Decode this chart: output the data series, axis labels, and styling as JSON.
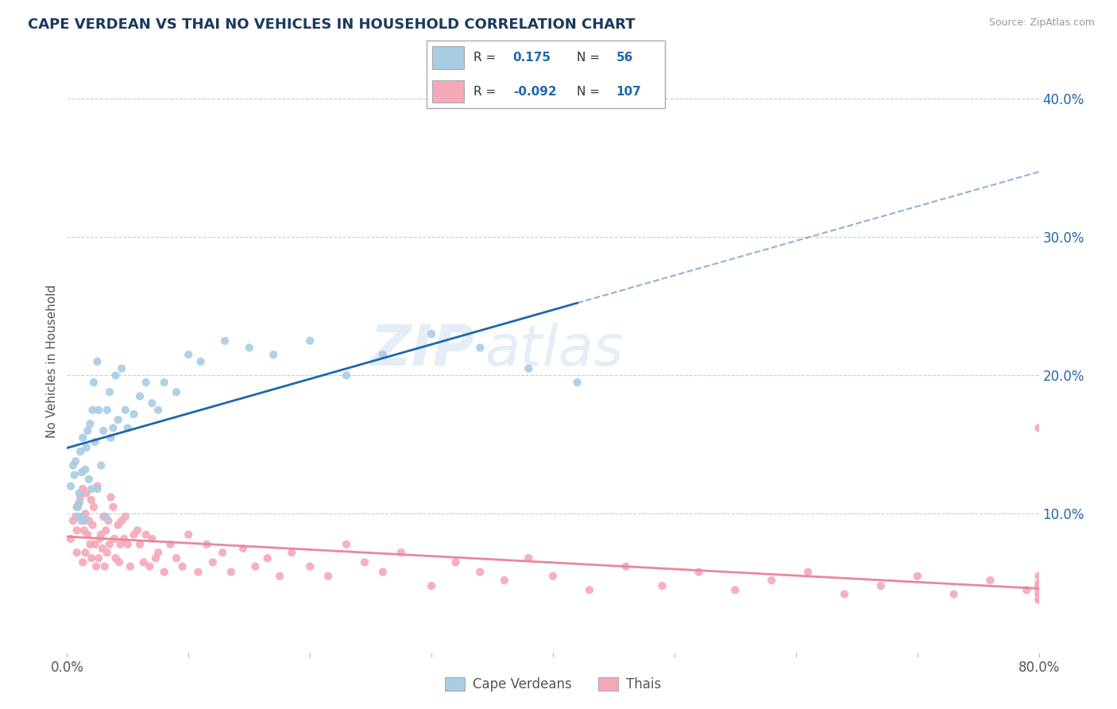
{
  "title": "CAPE VERDEAN VS THAI NO VEHICLES IN HOUSEHOLD CORRELATION CHART",
  "source": "Source: ZipAtlas.com",
  "ylabel": "No Vehicles in Household",
  "xlim": [
    0.0,
    0.8
  ],
  "ylim": [
    0.0,
    0.42
  ],
  "xtick_vals": [
    0.0,
    0.1,
    0.2,
    0.3,
    0.4,
    0.5,
    0.6,
    0.7,
    0.8
  ],
  "xticklabels": [
    "0.0%",
    "",
    "",
    "",
    "",
    "",
    "",
    "",
    "80.0%"
  ],
  "ytick_vals": [
    0.1,
    0.2,
    0.3,
    0.4
  ],
  "yticklabels": [
    "10.0%",
    "20.0%",
    "30.0%",
    "40.0%"
  ],
  "r_cape": 0.175,
  "n_cape": 56,
  "r_thai": -0.092,
  "n_thai": 107,
  "cape_color": "#a8cce4",
  "thai_color": "#f5a8b8",
  "trend_cape_color": "#2166ac",
  "trend_thai_color": "#e8889a",
  "watermark_text": "ZIP",
  "watermark_text2": "atlas",
  "legend_labels": [
    "Cape Verdeans",
    "Thais"
  ],
  "cape_verdean_x": [
    0.003,
    0.005,
    0.006,
    0.007,
    0.008,
    0.009,
    0.01,
    0.01,
    0.011,
    0.012,
    0.012,
    0.013,
    0.014,
    0.015,
    0.016,
    0.017,
    0.018,
    0.019,
    0.02,
    0.021,
    0.022,
    0.023,
    0.025,
    0.025,
    0.026,
    0.028,
    0.03,
    0.032,
    0.033,
    0.035,
    0.036,
    0.038,
    0.04,
    0.042,
    0.045,
    0.048,
    0.05,
    0.055,
    0.06,
    0.065,
    0.07,
    0.075,
    0.08,
    0.09,
    0.1,
    0.11,
    0.13,
    0.15,
    0.17,
    0.2,
    0.23,
    0.26,
    0.3,
    0.34,
    0.38,
    0.42
  ],
  "cape_verdean_y": [
    0.12,
    0.135,
    0.128,
    0.138,
    0.105,
    0.098,
    0.115,
    0.108,
    0.145,
    0.13,
    0.098,
    0.155,
    0.095,
    0.132,
    0.148,
    0.16,
    0.125,
    0.165,
    0.118,
    0.175,
    0.195,
    0.152,
    0.118,
    0.21,
    0.175,
    0.135,
    0.16,
    0.098,
    0.175,
    0.188,
    0.155,
    0.162,
    0.2,
    0.168,
    0.205,
    0.175,
    0.162,
    0.172,
    0.185,
    0.195,
    0.18,
    0.175,
    0.195,
    0.188,
    0.215,
    0.21,
    0.225,
    0.22,
    0.215,
    0.225,
    0.2,
    0.215,
    0.23,
    0.22,
    0.205,
    0.195
  ],
  "thai_x": [
    0.003,
    0.005,
    0.007,
    0.008,
    0.008,
    0.009,
    0.01,
    0.011,
    0.012,
    0.013,
    0.013,
    0.014,
    0.015,
    0.015,
    0.016,
    0.017,
    0.018,
    0.019,
    0.02,
    0.02,
    0.021,
    0.022,
    0.023,
    0.024,
    0.025,
    0.026,
    0.027,
    0.028,
    0.029,
    0.03,
    0.031,
    0.032,
    0.033,
    0.034,
    0.035,
    0.036,
    0.038,
    0.039,
    0.04,
    0.042,
    0.043,
    0.044,
    0.045,
    0.047,
    0.048,
    0.05,
    0.052,
    0.055,
    0.058,
    0.06,
    0.063,
    0.065,
    0.068,
    0.07,
    0.073,
    0.075,
    0.08,
    0.085,
    0.09,
    0.095,
    0.1,
    0.108,
    0.115,
    0.12,
    0.128,
    0.135,
    0.145,
    0.155,
    0.165,
    0.175,
    0.185,
    0.2,
    0.215,
    0.23,
    0.245,
    0.26,
    0.275,
    0.3,
    0.32,
    0.34,
    0.36,
    0.38,
    0.4,
    0.43,
    0.46,
    0.49,
    0.52,
    0.55,
    0.58,
    0.61,
    0.64,
    0.67,
    0.7,
    0.73,
    0.76,
    0.79,
    0.8,
    0.8,
    0.8,
    0.8,
    0.8,
    0.8,
    0.8,
    0.8,
    0.8,
    0.8,
    0.8
  ],
  "thai_y": [
    0.082,
    0.095,
    0.098,
    0.088,
    0.072,
    0.105,
    0.108,
    0.112,
    0.095,
    0.118,
    0.065,
    0.088,
    0.1,
    0.072,
    0.115,
    0.085,
    0.095,
    0.078,
    0.11,
    0.068,
    0.092,
    0.105,
    0.078,
    0.062,
    0.12,
    0.068,
    0.082,
    0.085,
    0.075,
    0.098,
    0.062,
    0.088,
    0.072,
    0.095,
    0.078,
    0.112,
    0.105,
    0.082,
    0.068,
    0.092,
    0.065,
    0.078,
    0.095,
    0.082,
    0.098,
    0.078,
    0.062,
    0.085,
    0.088,
    0.078,
    0.065,
    0.085,
    0.062,
    0.082,
    0.068,
    0.072,
    0.058,
    0.078,
    0.068,
    0.062,
    0.085,
    0.058,
    0.078,
    0.065,
    0.072,
    0.058,
    0.075,
    0.062,
    0.068,
    0.055,
    0.072,
    0.062,
    0.055,
    0.078,
    0.065,
    0.058,
    0.072,
    0.048,
    0.065,
    0.058,
    0.052,
    0.068,
    0.055,
    0.045,
    0.062,
    0.048,
    0.058,
    0.045,
    0.052,
    0.058,
    0.042,
    0.048,
    0.055,
    0.042,
    0.052,
    0.045,
    0.048,
    0.042,
    0.055,
    0.038,
    0.05,
    0.162,
    0.038,
    0.042,
    0.048,
    0.038,
    0.045
  ]
}
